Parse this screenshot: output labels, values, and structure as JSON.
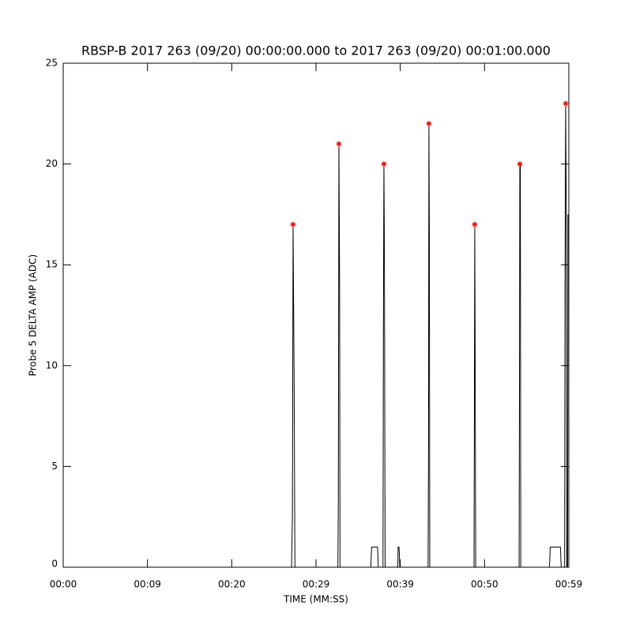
{
  "chart_data": {
    "type": "line",
    "title": "RBSP-B 2017 263 (09/20) 00:00:00.000 to 2017 263 (09/20) 00:01:00.000",
    "x_label": "TIME (MM:SS)",
    "y_label": "Probe 5 DELTA AMP (ADC)",
    "xlim": [
      0,
      60
    ],
    "xticks": [
      {
        "value": 0,
        "label": "00:00"
      },
      {
        "value": 10,
        "label": "00:09"
      },
      {
        "value": 20,
        "label": "00:20"
      },
      {
        "value": 30,
        "label": "00:29"
      },
      {
        "value": 40,
        "label": "00:39"
      },
      {
        "value": 50,
        "label": "00:50"
      },
      {
        "value": 60,
        "label": "00:59"
      }
    ],
    "ylim": [
      0,
      25
    ],
    "yticks": [
      0,
      5,
      10,
      15,
      20,
      25
    ],
    "series": [
      {
        "style": "line",
        "color": "#000000",
        "x": [
          0,
          27.1,
          27.2,
          27.28,
          27.4,
          27.5,
          32.6,
          32.65,
          32.72,
          32.8,
          32.85,
          36.5,
          36.6,
          37.3,
          37.4,
          37.95,
          38.0,
          38.06,
          38.12,
          38.2,
          39.7,
          39.75,
          39.85,
          39.95,
          43.3,
          43.35,
          43.4,
          43.45,
          43.5,
          48.75,
          48.8,
          48.84,
          48.9,
          48.95,
          54.1,
          54.15,
          54.19,
          54.25,
          54.3,
          57.7,
          57.8,
          59.0,
          59.1,
          59.5,
          59.55,
          59.63,
          59.7,
          59.75,
          59.85,
          59.9
        ],
        "values": [
          0,
          0,
          2.5,
          17,
          9.5,
          0,
          0,
          3.5,
          21,
          14,
          0,
          0,
          1,
          1,
          0,
          0,
          12,
          20,
          15.5,
          0,
          0,
          1,
          1,
          0,
          0,
          5.5,
          22,
          16.5,
          0,
          0,
          8.5,
          17,
          9,
          0,
          0,
          10,
          20,
          20,
          0,
          0,
          1,
          1,
          0,
          0,
          14,
          23,
          17.5,
          0,
          0,
          17.5
        ]
      },
      {
        "style": "markers",
        "color": "#ff0000",
        "x": [
          27.28,
          32.72,
          38.06,
          43.4,
          48.84,
          54.19,
          59.63
        ],
        "values": [
          17,
          21,
          20,
          22,
          17,
          20,
          23
        ]
      }
    ]
  }
}
